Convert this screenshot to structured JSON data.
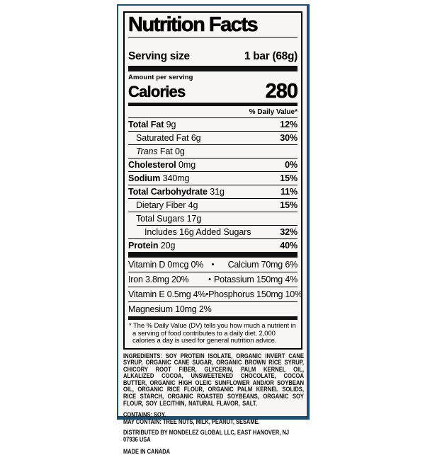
{
  "panel": {
    "border_color": "#204e6e",
    "background": "#f7f6f4",
    "bar_color": "#111111"
  },
  "label": {
    "title": "Nutrition Facts",
    "serving": {
      "label": "Serving size",
      "value": "1 bar (68g)"
    },
    "calories": {
      "amount_label": "Amount per serving",
      "label": "Calories",
      "value": "280"
    },
    "daily_value_header": "% Daily Value*",
    "bullet": "•",
    "rows": [
      {
        "name": "Total Fat",
        "amount": "9g",
        "dv": "12%"
      },
      {
        "name": "Saturated Fat",
        "amount": "6g",
        "dv": "30%"
      },
      {
        "name": "Trans",
        "amount": "Fat 0g",
        "dv": ""
      },
      {
        "name": "Cholesterol",
        "amount": "0mg",
        "dv": "0%"
      },
      {
        "name": "Sodium",
        "amount": "340mg",
        "dv": "15%"
      },
      {
        "name": "Total Carbohydrate",
        "amount": "31g",
        "dv": "11%"
      },
      {
        "name": "Dietary Fiber",
        "amount": "4g",
        "dv": "15%"
      },
      {
        "name": "Total Sugars",
        "amount": "17g",
        "dv": ""
      },
      {
        "name": "Includes 16g Added Sugars",
        "amount": "",
        "dv": "32%"
      },
      {
        "name": "Protein",
        "amount": "20g",
        "dv": "40%"
      }
    ],
    "vitamins": [
      {
        "left": "Vitamin D 0mcg 0%",
        "right": "Calcium 70mg 6%"
      },
      {
        "left": "Iron 3.8mg 20%",
        "right": "Potassium 150mg 4%"
      },
      {
        "left": "Vitamin E 0.5mg 4%",
        "right": "Phosphorus 150mg 10%"
      },
      {
        "left": "Magnesium 10mg 2%",
        "right": ""
      }
    ],
    "footnote": "* The % Daily Value (DV) tells you how much a nutrient in a serving of food contributes to a daily diet. 2,000 calories a day is used for general nutrition advice."
  },
  "bottom": {
    "ingredients": "INGREDIENTS: SOY PROTEIN ISOLATE, ORGANIC INVERT CANE SYRUP, ORGANIC CANE SUGAR, ORGANIC BROWN RICE SYRUP, CHICORY ROOT FIBER, GLYCERIN, PALM KERNEL OIL, ALKALIZED COCOA, UNSWEETENED CHOCOLATE, COCOA BUTTER, ORGANIC HIGH OLEIC SUNFLOWER AND/OR SOYBEAN OIL, ORGANIC RICE FLOUR, ORGANIC PALM KERNEL SOLIDS, RICE STARCH, ORGANIC ROASTED SOYBEANS, ORGANIC SOY FLOUR, SOY LECITHIN, NATURAL FLAVOR, SALT.",
    "contains": "CONTAINS: SOY.",
    "may_contain": "MAY CONTAIN: TREE NUTS, MILK, PEANUT, SESAME.",
    "distributed": "DISTRIBUTED BY MONDELEZ GLOBAL LLC, EAST HANOVER, NJ 07936 USA",
    "made_in": "MADE IN CANADA"
  }
}
